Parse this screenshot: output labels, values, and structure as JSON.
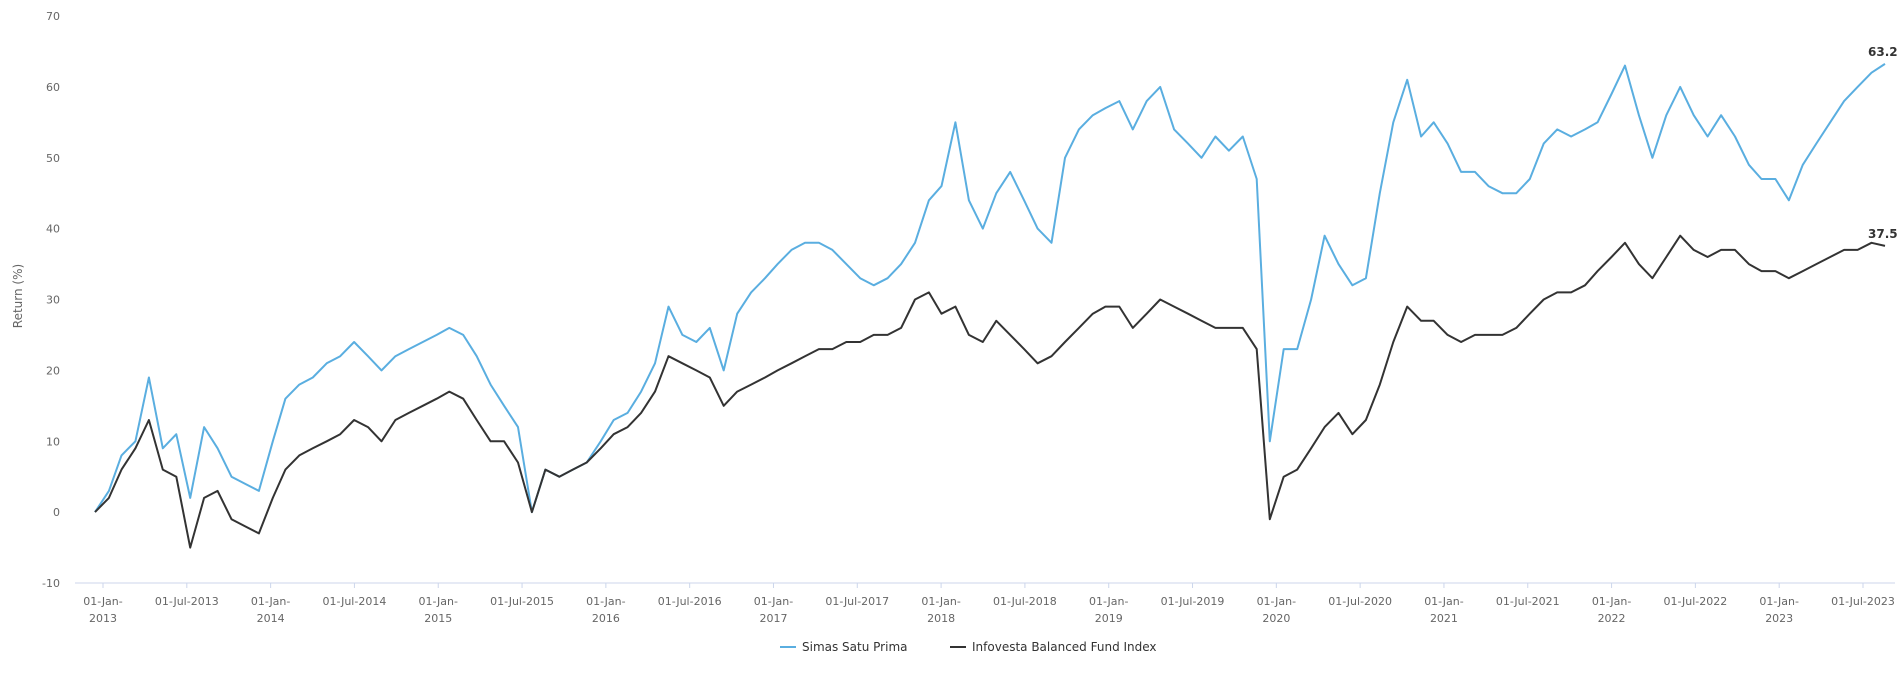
{
  "chart_data": {
    "type": "line",
    "title": "",
    "xlabel": "",
    "ylabel": "Return (%)",
    "ylim": [
      -10,
      70
    ],
    "yticks": [
      "-10",
      "0",
      "10",
      "20",
      "30",
      "40",
      "50",
      "60",
      "70"
    ],
    "xticks": [
      [
        "01-Jan-",
        "2013"
      ],
      [
        "01-Jul-2013"
      ],
      [
        "01-Jan-",
        "2014"
      ],
      [
        "01-Jul-2014"
      ],
      [
        "01-Jan-",
        "2015"
      ],
      [
        "01-Jul-2015"
      ],
      [
        "01-Jan-",
        "2016"
      ],
      [
        "01-Jul-2016"
      ],
      [
        "01-Jan-",
        "2017"
      ],
      [
        "01-Jul-2017"
      ],
      [
        "01-Jan-",
        "2018"
      ],
      [
        "01-Jul-2018"
      ],
      [
        "01-Jan-",
        "2019"
      ],
      [
        "01-Jul-2019"
      ],
      [
        "01-Jan-",
        "2020"
      ],
      [
        "01-Jul-2020"
      ],
      [
        "01-Jan-",
        "2021"
      ],
      [
        "01-Jul-2021"
      ],
      [
        "01-Jan-",
        "2022"
      ],
      [
        "01-Jul-2022"
      ],
      [
        "01-Jan-",
        "2023"
      ],
      [
        "01-Jul-2023"
      ]
    ],
    "grid": false,
    "legend_position": "bottom-center",
    "series": [
      {
        "name": "Simas Satu Prima",
        "color": "#5aaee0",
        "end_label": "63.24",
        "points": [
          [
            "2013-01-01",
            0
          ],
          [
            "2013-02-01",
            3
          ],
          [
            "2013-03-01",
            8
          ],
          [
            "2013-04-01",
            10
          ],
          [
            "2013-05-01",
            19
          ],
          [
            "2013-06-01",
            9
          ],
          [
            "2013-07-01",
            11
          ],
          [
            "2013-08-01",
            2
          ],
          [
            "2013-09-01",
            12
          ],
          [
            "2013-10-01",
            9
          ],
          [
            "2013-11-01",
            5
          ],
          [
            "2013-12-01",
            4
          ],
          [
            "2014-01-01",
            3
          ],
          [
            "2014-02-01",
            10
          ],
          [
            "2014-03-01",
            16
          ],
          [
            "2014-04-01",
            18
          ],
          [
            "2014-05-01",
            19
          ],
          [
            "2014-06-01",
            21
          ],
          [
            "2014-07-01",
            22
          ],
          [
            "2014-08-01",
            24
          ],
          [
            "2014-09-01",
            22
          ],
          [
            "2014-10-01",
            20
          ],
          [
            "2014-11-01",
            22
          ],
          [
            "2014-12-01",
            23
          ],
          [
            "2015-01-01",
            24
          ],
          [
            "2015-02-01",
            25
          ],
          [
            "2015-03-01",
            26
          ],
          [
            "2015-04-01",
            25
          ],
          [
            "2015-05-01",
            22
          ],
          [
            "2015-06-01",
            18
          ],
          [
            "2015-07-01",
            15
          ],
          [
            "2015-08-01",
            12
          ],
          [
            "2015-09-01",
            0
          ],
          [
            "2015-10-01",
            6
          ],
          [
            "2015-11-01",
            5
          ],
          [
            "2015-12-01",
            6
          ],
          [
            "2016-01-01",
            7
          ],
          [
            "2016-02-01",
            10
          ],
          [
            "2016-03-01",
            13
          ],
          [
            "2016-04-01",
            14
          ],
          [
            "2016-05-01",
            17
          ],
          [
            "2016-06-01",
            21
          ],
          [
            "2016-07-01",
            29
          ],
          [
            "2016-08-01",
            25
          ],
          [
            "2016-09-01",
            24
          ],
          [
            "2016-10-01",
            26
          ],
          [
            "2016-11-01",
            20
          ],
          [
            "2016-12-01",
            28
          ],
          [
            "2017-01-01",
            31
          ],
          [
            "2017-02-01",
            33
          ],
          [
            "2017-03-01",
            35
          ],
          [
            "2017-04-01",
            37
          ],
          [
            "2017-05-01",
            38
          ],
          [
            "2017-06-01",
            38
          ],
          [
            "2017-07-01",
            37
          ],
          [
            "2017-08-01",
            35
          ],
          [
            "2017-09-01",
            33
          ],
          [
            "2017-10-01",
            32
          ],
          [
            "2017-11-01",
            33
          ],
          [
            "2017-12-01",
            35
          ],
          [
            "2018-01-01",
            38
          ],
          [
            "2018-02-01",
            44
          ],
          [
            "2018-03-01",
            46
          ],
          [
            "2018-04-01",
            55
          ],
          [
            "2018-05-01",
            44
          ],
          [
            "2018-06-01",
            40
          ],
          [
            "2018-07-01",
            45
          ],
          [
            "2018-08-01",
            48
          ],
          [
            "2018-09-01",
            44
          ],
          [
            "2018-10-01",
            40
          ],
          [
            "2018-11-01",
            38
          ],
          [
            "2018-12-01",
            50
          ],
          [
            "2019-01-01",
            54
          ],
          [
            "2019-02-01",
            56
          ],
          [
            "2019-03-01",
            57
          ],
          [
            "2019-04-01",
            58
          ],
          [
            "2019-05-01",
            54
          ],
          [
            "2019-06-01",
            58
          ],
          [
            "2019-07-01",
            60
          ],
          [
            "2019-08-01",
            54
          ],
          [
            "2019-09-01",
            52
          ],
          [
            "2019-10-01",
            50
          ],
          [
            "2019-11-01",
            53
          ],
          [
            "2019-12-01",
            51
          ],
          [
            "2020-01-01",
            53
          ],
          [
            "2020-02-01",
            47
          ],
          [
            "2020-03-01",
            10
          ],
          [
            "2020-04-01",
            23
          ],
          [
            "2020-05-01",
            23
          ],
          [
            "2020-06-01",
            30
          ],
          [
            "2020-07-01",
            39
          ],
          [
            "2020-08-01",
            35
          ],
          [
            "2020-09-01",
            32
          ],
          [
            "2020-10-01",
            33
          ],
          [
            "2020-11-01",
            45
          ],
          [
            "2020-12-01",
            55
          ],
          [
            "2021-01-01",
            61
          ],
          [
            "2021-02-01",
            53
          ],
          [
            "2021-03-01",
            55
          ],
          [
            "2021-04-01",
            52
          ],
          [
            "2021-05-01",
            48
          ],
          [
            "2021-06-01",
            48
          ],
          [
            "2021-07-01",
            46
          ],
          [
            "2021-08-01",
            45
          ],
          [
            "2021-09-01",
            45
          ],
          [
            "2021-10-01",
            47
          ],
          [
            "2021-11-01",
            52
          ],
          [
            "2021-12-01",
            54
          ],
          [
            "2022-01-01",
            53
          ],
          [
            "2022-02-01",
            54
          ],
          [
            "2022-03-01",
            55
          ],
          [
            "2022-04-01",
            59
          ],
          [
            "2022-05-01",
            63
          ],
          [
            "2022-06-01",
            56
          ],
          [
            "2022-07-01",
            50
          ],
          [
            "2022-08-01",
            56
          ],
          [
            "2022-09-01",
            60
          ],
          [
            "2022-10-01",
            56
          ],
          [
            "2022-11-01",
            53
          ],
          [
            "2022-12-01",
            56
          ],
          [
            "2023-01-01",
            53
          ],
          [
            "2023-02-01",
            49
          ],
          [
            "2023-03-01",
            47
          ],
          [
            "2023-04-01",
            47
          ],
          [
            "2023-05-01",
            44
          ],
          [
            "2023-06-01",
            49
          ],
          [
            "2023-07-01",
            52
          ],
          [
            "2023-08-01",
            55
          ],
          [
            "2023-09-01",
            58
          ],
          [
            "2023-10-01",
            60
          ],
          [
            "2023-11-01",
            62
          ],
          [
            "2023-12-01",
            63.24
          ]
        ]
      },
      {
        "name": "Infovesta Balanced Fund Index",
        "color": "#333333",
        "end_label": "37.56",
        "points": [
          [
            "2013-01-01",
            0
          ],
          [
            "2013-02-01",
            2
          ],
          [
            "2013-03-01",
            6
          ],
          [
            "2013-04-01",
            9
          ],
          [
            "2013-05-01",
            13
          ],
          [
            "2013-06-01",
            6
          ],
          [
            "2013-07-01",
            5
          ],
          [
            "2013-08-01",
            -5
          ],
          [
            "2013-09-01",
            2
          ],
          [
            "2013-10-01",
            3
          ],
          [
            "2013-11-01",
            -1
          ],
          [
            "2013-12-01",
            -2
          ],
          [
            "2014-01-01",
            -3
          ],
          [
            "2014-02-01",
            2
          ],
          [
            "2014-03-01",
            6
          ],
          [
            "2014-04-01",
            8
          ],
          [
            "2014-05-01",
            9
          ],
          [
            "2014-06-01",
            10
          ],
          [
            "2014-07-01",
            11
          ],
          [
            "2014-08-01",
            13
          ],
          [
            "2014-09-01",
            12
          ],
          [
            "2014-10-01",
            10
          ],
          [
            "2014-11-01",
            13
          ],
          [
            "2014-12-01",
            14
          ],
          [
            "2015-01-01",
            15
          ],
          [
            "2015-02-01",
            16
          ],
          [
            "2015-03-01",
            17
          ],
          [
            "2015-04-01",
            16
          ],
          [
            "2015-05-01",
            13
          ],
          [
            "2015-06-01",
            10
          ],
          [
            "2015-07-01",
            10
          ],
          [
            "2015-08-01",
            7
          ],
          [
            "2015-09-01",
            0
          ],
          [
            "2015-10-01",
            6
          ],
          [
            "2015-11-01",
            5
          ],
          [
            "2015-12-01",
            6
          ],
          [
            "2016-01-01",
            7
          ],
          [
            "2016-02-01",
            9
          ],
          [
            "2016-03-01",
            11
          ],
          [
            "2016-04-01",
            12
          ],
          [
            "2016-05-01",
            14
          ],
          [
            "2016-06-01",
            17
          ],
          [
            "2016-07-01",
            22
          ],
          [
            "2016-08-01",
            21
          ],
          [
            "2016-09-01",
            20
          ],
          [
            "2016-10-01",
            19
          ],
          [
            "2016-11-01",
            15
          ],
          [
            "2016-12-01",
            17
          ],
          [
            "2017-01-01",
            18
          ],
          [
            "2017-02-01",
            19
          ],
          [
            "2017-03-01",
            20
          ],
          [
            "2017-04-01",
            21
          ],
          [
            "2017-05-01",
            22
          ],
          [
            "2017-06-01",
            23
          ],
          [
            "2017-07-01",
            23
          ],
          [
            "2017-08-01",
            24
          ],
          [
            "2017-09-01",
            24
          ],
          [
            "2017-10-01",
            25
          ],
          [
            "2017-11-01",
            25
          ],
          [
            "2017-12-01",
            26
          ],
          [
            "2018-01-01",
            30
          ],
          [
            "2018-02-01",
            31
          ],
          [
            "2018-03-01",
            28
          ],
          [
            "2018-04-01",
            29
          ],
          [
            "2018-05-01",
            25
          ],
          [
            "2018-06-01",
            24
          ],
          [
            "2018-07-01",
            27
          ],
          [
            "2018-08-01",
            25
          ],
          [
            "2018-09-01",
            23
          ],
          [
            "2018-10-01",
            21
          ],
          [
            "2018-11-01",
            22
          ],
          [
            "2018-12-01",
            24
          ],
          [
            "2019-01-01",
            26
          ],
          [
            "2019-02-01",
            28
          ],
          [
            "2019-03-01",
            29
          ],
          [
            "2019-04-01",
            29
          ],
          [
            "2019-05-01",
            26
          ],
          [
            "2019-06-01",
            28
          ],
          [
            "2019-07-01",
            30
          ],
          [
            "2019-08-01",
            29
          ],
          [
            "2019-09-01",
            28
          ],
          [
            "2019-10-01",
            27
          ],
          [
            "2019-11-01",
            26
          ],
          [
            "2019-12-01",
            26
          ],
          [
            "2020-01-01",
            26
          ],
          [
            "2020-02-01",
            23
          ],
          [
            "2020-03-01",
            -1
          ],
          [
            "2020-04-01",
            5
          ],
          [
            "2020-05-01",
            6
          ],
          [
            "2020-06-01",
            9
          ],
          [
            "2020-07-01",
            12
          ],
          [
            "2020-08-01",
            14
          ],
          [
            "2020-09-01",
            11
          ],
          [
            "2020-10-01",
            13
          ],
          [
            "2020-11-01",
            18
          ],
          [
            "2020-12-01",
            24
          ],
          [
            "2021-01-01",
            29
          ],
          [
            "2021-02-01",
            27
          ],
          [
            "2021-03-01",
            27
          ],
          [
            "2021-04-01",
            25
          ],
          [
            "2021-05-01",
            24
          ],
          [
            "2021-06-01",
            25
          ],
          [
            "2021-07-01",
            25
          ],
          [
            "2021-08-01",
            25
          ],
          [
            "2021-09-01",
            26
          ],
          [
            "2021-10-01",
            28
          ],
          [
            "2021-11-01",
            30
          ],
          [
            "2021-12-01",
            31
          ],
          [
            "2022-01-01",
            31
          ],
          [
            "2022-02-01",
            32
          ],
          [
            "2022-03-01",
            34
          ],
          [
            "2022-04-01",
            36
          ],
          [
            "2022-05-01",
            38
          ],
          [
            "2022-06-01",
            35
          ],
          [
            "2022-07-01",
            33
          ],
          [
            "2022-08-01",
            36
          ],
          [
            "2022-09-01",
            39
          ],
          [
            "2022-10-01",
            37
          ],
          [
            "2022-11-01",
            36
          ],
          [
            "2022-12-01",
            37
          ],
          [
            "2023-01-01",
            37
          ],
          [
            "2023-02-01",
            35
          ],
          [
            "2023-03-01",
            34
          ],
          [
            "2023-04-01",
            34
          ],
          [
            "2023-05-01",
            33
          ],
          [
            "2023-06-01",
            34
          ],
          [
            "2023-07-01",
            35
          ],
          [
            "2023-08-01",
            36
          ],
          [
            "2023-09-01",
            37
          ],
          [
            "2023-10-01",
            37
          ],
          [
            "2023-11-01",
            38
          ],
          [
            "2023-12-01",
            37.56
          ]
        ]
      }
    ]
  }
}
